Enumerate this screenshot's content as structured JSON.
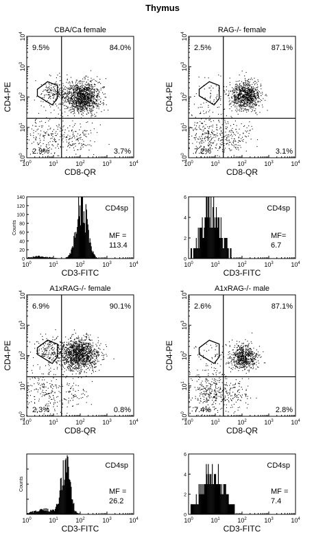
{
  "figure_title": "Thymus",
  "chart_data": [
    {
      "type": "scatter",
      "title": "CBA/Ca female",
      "xlabel": "CD8-QR",
      "ylabel": "CD4-PE",
      "xscale": "log",
      "yscale": "log",
      "xlim": [
        1,
        10000
      ],
      "ylim": [
        1,
        10000
      ],
      "tick_labels": [
        "10^0",
        "10^1",
        "10^2",
        "10^3",
        "10^4"
      ],
      "quadrant_labels": {
        "upper_left": "9.5%",
        "upper_right": "84.0%",
        "lower_left": "2.9%",
        "lower_right": "3.7%"
      },
      "quadrant_gate": {
        "x": 20,
        "y": 20
      },
      "populations": [
        {
          "name": "",
          "x_center": 120,
          "y_center": 100,
          "spread": 0.32,
          "count": 1200
        },
        {
          "name": "",
          "x_center": 12,
          "y_center": 130,
          "spread": 0.3,
          "count": 220
        },
        {
          "name": "",
          "x_center": 6,
          "y_center": 5,
          "spread": 0.45,
          "count": 180
        },
        {
          "name": "",
          "x_center": 70,
          "y_center": 4,
          "spread": 0.35,
          "count": 120
        }
      ]
    },
    {
      "type": "scatter",
      "title": "RAG-/-  female",
      "xlabel": "CD8-QR",
      "ylabel": "CD4-PE",
      "xscale": "log",
      "yscale": "log",
      "xlim": [
        1,
        10000
      ],
      "ylim": [
        1,
        10000
      ],
      "tick_labels": [
        "10^0",
        "10^1",
        "10^2",
        "10^3",
        "10^4"
      ],
      "quadrant_labels": {
        "upper_left": "2.5%",
        "upper_right": "87.1%",
        "lower_left": "7.2%",
        "lower_right": "3.1%"
      },
      "quadrant_gate": {
        "x": 20,
        "y": 20
      },
      "populations": [
        {
          "name": "",
          "x_center": 130,
          "y_center": 110,
          "spread": 0.28,
          "count": 900
        },
        {
          "name": "",
          "x_center": 8,
          "y_center": 120,
          "spread": 0.35,
          "count": 60
        },
        {
          "name": "",
          "x_center": 6,
          "y_center": 6,
          "spread": 0.45,
          "count": 300
        },
        {
          "name": "",
          "x_center": 60,
          "y_center": 5,
          "spread": 0.35,
          "count": 100
        }
      ]
    },
    {
      "type": "histogram",
      "xlabel": "CD3-FITC",
      "ylabel": "Counts",
      "xscale": "log",
      "xlim": [
        1,
        10000
      ],
      "ylim": [
        0,
        140
      ],
      "x_tick_labels": [
        "10^0",
        "10^1",
        "10^2",
        "10^3",
        "10^4"
      ],
      "y_tick_labels": [
        "0",
        "20",
        "40",
        "60",
        "80",
        "100",
        "120",
        "140"
      ],
      "label": "CD4sp",
      "mf_label": "MF =",
      "mf_value": "113.4",
      "distribution": {
        "peak_x": 115,
        "peak_count": 125,
        "log_sd": 0.2,
        "low_tail_x": 3,
        "low_tail_count": 5
      }
    },
    {
      "type": "histogram",
      "xlabel": "CD3-FITC",
      "ylabel": "",
      "xscale": "log",
      "xlim": [
        1,
        10000
      ],
      "ylim": [
        0,
        6
      ],
      "x_tick_labels": [
        "10^0",
        "10^1",
        "10^2",
        "10^3",
        "10^4"
      ],
      "y_tick_labels": [
        "0",
        "2",
        "4",
        "6"
      ],
      "label": "CD4sp",
      "mf_label": "MF=",
      "mf_value": "6.7",
      "distribution": {
        "peak_x": 7,
        "peak_count": 5,
        "log_sd": 0.35,
        "low_tail_x": 0,
        "low_tail_count": 0
      }
    },
    {
      "type": "scatter",
      "title": "A1xRAG-/-  female",
      "xlabel": "CD8-QR",
      "ylabel": "CD4-PE",
      "xscale": "log",
      "yscale": "log",
      "xlim": [
        1,
        10000
      ],
      "ylim": [
        1,
        10000
      ],
      "tick_labels": [
        "10^0",
        "10^1",
        "10^2",
        "10^3",
        "10^4"
      ],
      "quadrant_labels": {
        "upper_left": "6.9%",
        "upper_right": "90.1%",
        "lower_left": "2.3%",
        "lower_right": "0.8%"
      },
      "quadrant_gate": {
        "x": 20,
        "y": 20
      },
      "populations": [
        {
          "name": "",
          "x_center": 90,
          "y_center": 110,
          "spread": 0.33,
          "count": 1300
        },
        {
          "name": "",
          "x_center": 8,
          "y_center": 140,
          "spread": 0.3,
          "count": 220
        },
        {
          "name": "",
          "x_center": 6,
          "y_center": 6,
          "spread": 0.5,
          "count": 220
        },
        {
          "name": "",
          "x_center": 60,
          "y_center": 6,
          "spread": 0.3,
          "count": 50
        }
      ]
    },
    {
      "type": "scatter",
      "title": "A1xRAG-/-  male",
      "xlabel": "CD8-QR",
      "ylabel": "CD4-PE",
      "xscale": "log",
      "yscale": "log",
      "xlim": [
        1,
        10000
      ],
      "ylim": [
        1,
        10000
      ],
      "tick_labels": [
        "10^0",
        "10^1",
        "10^2",
        "10^3",
        "10^4"
      ],
      "quadrant_labels": {
        "upper_left": "2.6%",
        "upper_right": "87.1%",
        "lower_left": "7.4%",
        "lower_right": "2.8%"
      },
      "quadrant_gate": {
        "x": 20,
        "y": 20
      },
      "populations": [
        {
          "name": "",
          "x_center": 110,
          "y_center": 90,
          "spread": 0.25,
          "count": 650
        },
        {
          "name": "",
          "x_center": 7,
          "y_center": 100,
          "spread": 0.35,
          "count": 50
        },
        {
          "name": "",
          "x_center": 6,
          "y_center": 6,
          "spread": 0.45,
          "count": 330
        },
        {
          "name": "",
          "x_center": 60,
          "y_center": 5,
          "spread": 0.35,
          "count": 90
        }
      ]
    },
    {
      "type": "histogram",
      "xlabel": "CD3-FITC",
      "ylabel": "Counts",
      "xscale": "log",
      "xlim": [
        1,
        10000
      ],
      "ylim": [
        0,
        100
      ],
      "x_tick_labels": [
        "10^0",
        "10^1",
        "10^2",
        "10^3",
        "10^4"
      ],
      "y_tick_labels": [],
      "label": "CD4sp",
      "mf_label": "MF =",
      "mf_value": "26.2",
      "distribution": {
        "peak_x": 28,
        "peak_count": 82,
        "log_sd": 0.17,
        "low_tail_x": 4,
        "low_tail_count": 8
      }
    },
    {
      "type": "histogram",
      "xlabel": "CD3-FITC",
      "ylabel": "",
      "xscale": "log",
      "xlim": [
        1,
        10000
      ],
      "ylim": [
        0,
        6
      ],
      "x_tick_labels": [
        "10^0",
        "10^1",
        "10^2",
        "10^3",
        "10^4"
      ],
      "y_tick_labels": [
        "0",
        "2",
        "4",
        "6"
      ],
      "label": "CD4sp",
      "mf_label": "MF =",
      "mf_value": "7.4",
      "distribution": {
        "peak_x": 8,
        "peak_count": 4.5,
        "log_sd": 0.4,
        "low_tail_x": 0,
        "low_tail_count": 0
      }
    }
  ]
}
